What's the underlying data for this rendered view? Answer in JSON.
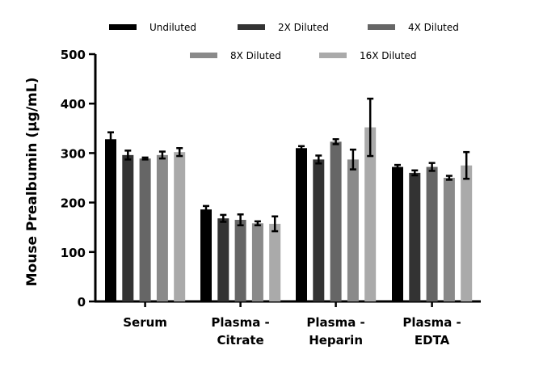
{
  "chart_data": {
    "type": "bar",
    "title": "",
    "xlabel": "",
    "ylabel": "Mouse Prealbumin (μg/mL)",
    "ylim": [
      0,
      500
    ],
    "yticks": [
      0,
      100,
      200,
      300,
      400,
      500
    ],
    "categories": [
      [
        "Serum"
      ],
      [
        "Plasma -",
        "Citrate"
      ],
      [
        "Plasma -",
        "Heparin"
      ],
      [
        "Plasma -",
        "EDTA"
      ]
    ],
    "legend_position": "top",
    "grid": false,
    "series": [
      {
        "name": "Undiluted",
        "color": "#000000",
        "values": [
          328,
          186,
          310,
          272
        ],
        "errors": [
          14,
          7,
          4,
          4
        ]
      },
      {
        "name": "2X Diluted",
        "color": "#333333",
        "values": [
          296,
          168,
          287,
          260
        ],
        "errors": [
          9,
          7,
          8,
          5
        ]
      },
      {
        "name": "4X Diluted",
        "color": "#666666",
        "values": [
          289,
          165,
          323,
          272
        ],
        "errors": [
          2,
          11,
          5,
          8
        ]
      },
      {
        "name": "8X Diluted",
        "color": "#8a8a8a",
        "values": [
          296,
          158,
          287,
          250
        ],
        "errors": [
          7,
          4,
          20,
          4
        ]
      },
      {
        "name": "16X Diluted",
        "color": "#aaaaaa",
        "values": [
          302,
          157,
          352,
          275
        ],
        "errors": [
          8,
          15,
          58,
          27
        ]
      }
    ]
  }
}
